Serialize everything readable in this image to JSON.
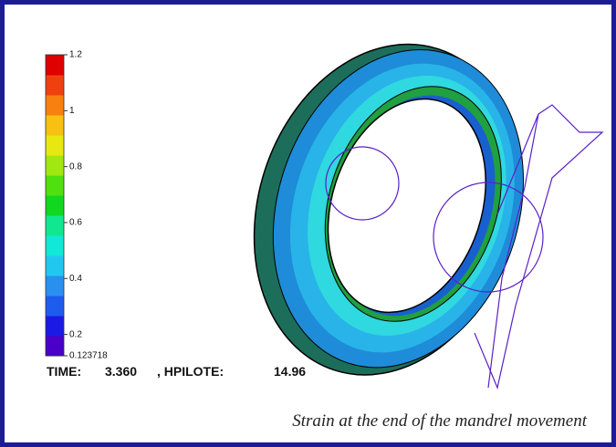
{
  "colorbar": {
    "min": 0.123718,
    "max": 1.2,
    "ticks": [
      0.123718,
      0.2,
      0.4,
      0.6,
      0.8,
      1,
      1.2
    ],
    "colors": [
      "#4a00c8",
      "#1a1ae6",
      "#1e5cf0",
      "#2a90f0",
      "#20c8f0",
      "#10e8d8",
      "#10e890",
      "#10d820",
      "#50e010",
      "#a0e810",
      "#e8e810",
      "#f8c010",
      "#f88010",
      "#f04010",
      "#e00000"
    ]
  },
  "status": {
    "time_label": "TIME:",
    "time": "3.360",
    "hpilote_label": ", HPILOTE:",
    "hpilote": "14.96"
  },
  "caption": "Strain at the end of the mandrel movement"
}
